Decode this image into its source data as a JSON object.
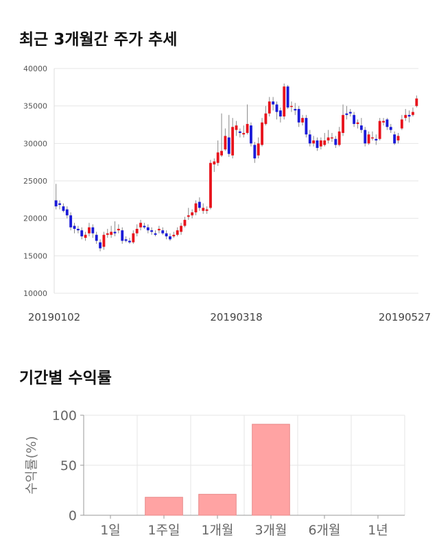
{
  "sections": {
    "price_title": "최근 3개월간 주가 추세",
    "return_title": "기간별 수익률"
  },
  "chart_data": [
    {
      "type": "candlestick",
      "title": "최근 3개월간 주가 추세",
      "ylim": [
        10000,
        40000
      ],
      "y_ticks": [
        "40000",
        "35000",
        "30000",
        "25000",
        "20000",
        "15000",
        "10000"
      ],
      "x_tick_labels": [
        "20190102",
        "20190318",
        "20190527"
      ],
      "grid": true,
      "colors": {
        "up": "#e8141d",
        "down": "#1b1bd8",
        "wick": "#888888",
        "grid": "#e6e6e6"
      },
      "candles": [
        [
          22400,
          21600,
          24600,
          21200
        ],
        [
          22000,
          21800,
          22400,
          21200
        ],
        [
          21600,
          21000,
          22000,
          20800
        ],
        [
          21200,
          20400,
          21600,
          20000
        ],
        [
          20400,
          18800,
          20800,
          18400
        ],
        [
          19000,
          18600,
          19400,
          18000
        ],
        [
          18600,
          18400,
          19000,
          18000
        ],
        [
          18400,
          17600,
          18800,
          17200
        ],
        [
          17400,
          17800,
          18200,
          17000
        ],
        [
          18000,
          18800,
          19400,
          17600
        ],
        [
          18800,
          18000,
          19200,
          17400
        ],
        [
          17800,
          17000,
          18200,
          16600
        ],
        [
          16800,
          16000,
          17200,
          15600
        ],
        [
          16200,
          17800,
          18200,
          15800
        ],
        [
          17800,
          18000,
          18600,
          17400
        ],
        [
          17800,
          18200,
          19000,
          17400
        ],
        [
          18200,
          18000,
          19600,
          17600
        ],
        [
          18400,
          18600,
          19200,
          18000
        ],
        [
          18400,
          17000,
          18800,
          16600
        ],
        [
          17200,
          17000,
          17600,
          16800
        ],
        [
          17000,
          16800,
          17400,
          16600
        ],
        [
          16800,
          18000,
          18400,
          16600
        ],
        [
          18000,
          18600,
          19200,
          17600
        ],
        [
          18800,
          19400,
          19800,
          18400
        ],
        [
          19000,
          18800,
          19400,
          18600
        ],
        [
          18800,
          18400,
          19200,
          18000
        ],
        [
          18400,
          18200,
          18800,
          17800
        ],
        [
          18000,
          17800,
          18400,
          17600
        ],
        [
          18400,
          18600,
          19000,
          18000
        ],
        [
          18400,
          18000,
          18800,
          17800
        ],
        [
          18000,
          17600,
          18400,
          17200
        ],
        [
          17600,
          17200,
          18000,
          17000
        ],
        [
          17600,
          17800,
          18200,
          17400
        ],
        [
          17800,
          18400,
          18800,
          17600
        ],
        [
          18200,
          19000,
          19400,
          17800
        ],
        [
          19000,
          19800,
          20200,
          18800
        ],
        [
          20200,
          20400,
          21400,
          19800
        ],
        [
          20400,
          20800,
          21200,
          20000
        ],
        [
          20800,
          22000,
          22400,
          20400
        ],
        [
          22200,
          21400,
          22800,
          21000
        ],
        [
          21000,
          21400,
          22000,
          20600
        ],
        [
          21000,
          21200,
          21600,
          20600
        ],
        [
          21400,
          27400,
          27800,
          21200
        ],
        [
          27200,
          27600,
          28000,
          26200
        ],
        [
          27400,
          28800,
          30400,
          27000
        ],
        [
          28400,
          29000,
          34000,
          28200
        ],
        [
          29200,
          31000,
          32000,
          29000
        ],
        [
          30800,
          28600,
          33800,
          28200
        ],
        [
          28400,
          32200,
          33400,
          28000
        ],
        [
          31800,
          32400,
          33000,
          31000
        ],
        [
          31600,
          31400,
          32000,
          30800
        ],
        [
          31200,
          31400,
          32400,
          30800
        ],
        [
          31400,
          32600,
          35200,
          31200
        ],
        [
          32400,
          30000,
          32800,
          29600
        ],
        [
          29800,
          28000,
          30200,
          27400
        ],
        [
          28400,
          30000,
          30800,
          28000
        ],
        [
          29800,
          32800,
          33400,
          29600
        ],
        [
          32600,
          34000,
          35000,
          32400
        ],
        [
          34000,
          35600,
          36200,
          33600
        ],
        [
          35600,
          35200,
          36200,
          34400
        ],
        [
          35200,
          34200,
          35600,
          33200
        ],
        [
          34400,
          33600,
          34800,
          32800
        ],
        [
          33600,
          37600,
          38000,
          33200
        ],
        [
          37600,
          34800,
          37800,
          34600
        ],
        [
          35000,
          35000,
          35600,
          34200
        ],
        [
          34600,
          34400,
          35400,
          33800
        ],
        [
          34600,
          32800,
          35000,
          32200
        ],
        [
          32800,
          33400,
          33800,
          32400
        ],
        [
          33400,
          31200,
          33800,
          30800
        ],
        [
          31200,
          30000,
          31800,
          29600
        ],
        [
          30000,
          30400,
          31000,
          29600
        ],
        [
          30400,
          29400,
          30800,
          29000
        ],
        [
          29600,
          30400,
          30800,
          29200
        ],
        [
          29800,
          30400,
          31400,
          29600
        ],
        [
          30400,
          30800,
          31800,
          30000
        ],
        [
          30800,
          30800,
          31400,
          30200
        ],
        [
          30600,
          29800,
          31000,
          29400
        ],
        [
          29800,
          31600,
          32200,
          29600
        ],
        [
          31400,
          33800,
          35200,
          31000
        ],
        [
          34000,
          33800,
          35000,
          33200
        ],
        [
          34200,
          34000,
          34600,
          33600
        ],
        [
          33800,
          32600,
          34200,
          32200
        ],
        [
          32600,
          32800,
          33200,
          32000
        ],
        [
          32400,
          31800,
          33400,
          31400
        ],
        [
          31800,
          30000,
          32200,
          29600
        ],
        [
          30000,
          31200,
          31600,
          29800
        ],
        [
          30800,
          30800,
          31600,
          30400
        ],
        [
          30600,
          30400,
          31200,
          29800
        ],
        [
          30600,
          33000,
          33400,
          30400
        ],
        [
          32800,
          33000,
          33400,
          32400
        ],
        [
          33200,
          32200,
          33400,
          31800
        ],
        [
          32200,
          31800,
          32600,
          31400
        ],
        [
          31200,
          30000,
          31600,
          29800
        ],
        [
          30400,
          31000,
          31400,
          30000
        ],
        [
          32000,
          33200,
          33800,
          31800
        ],
        [
          33400,
          33800,
          34600,
          33000
        ],
        [
          33800,
          33600,
          34400,
          32800
        ],
        [
          33800,
          34200,
          34800,
          33600
        ],
        [
          35000,
          36000,
          36400,
          34800
        ]
      ]
    },
    {
      "type": "bar",
      "title": "기간별 수익률",
      "categories": [
        "1일",
        "1주일",
        "1개월",
        "3개월",
        "6개월",
        "1년"
      ],
      "values": [
        0,
        18,
        21,
        91,
        0,
        0
      ],
      "ylabel": "수익률(%)",
      "ylim": [
        0,
        100
      ],
      "y_ticks": [
        "100",
        "50",
        "0"
      ],
      "grid": true,
      "colors": {
        "bar": "#ffa3a3",
        "bar_edge": "#e88a8a",
        "grid": "#e6e6e6",
        "axis": "#555555"
      }
    }
  ]
}
